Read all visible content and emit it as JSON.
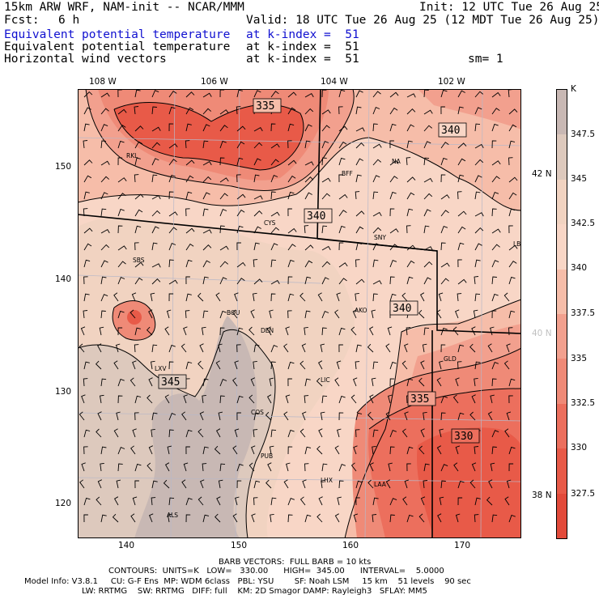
{
  "header": {
    "model_line": "15km ARW WRF, NAM-init -- NCAR/MMM",
    "init_line": "Init: 12 UTC Tue 26 Aug 25",
    "fcst_label": "Fcst:",
    "fcst_value": "6 h",
    "valid_line": "Valid: 18 UTC Tue 26 Aug 25 (12 MDT Tue 26 Aug 25)",
    "fields": [
      {
        "name": "Equivalent potential temperature",
        "level": "at k-index =  51",
        "color": "#1010d0"
      },
      {
        "name": "Equivalent potential temperature",
        "level": "at k-index =  51",
        "color": "#000000"
      },
      {
        "name": "Horizontal wind vectors",
        "level": "at k-index =  51",
        "color": "#000000"
      }
    ],
    "smoothing": "sm= 1"
  },
  "map": {
    "lon_labels_top": [
      "108 W",
      "106 W",
      "104 W",
      "102 W"
    ],
    "lat_labels_right": [
      {
        "text": "42 N",
        "color": "#000000"
      },
      {
        "text": "40 N",
        "color": "#c0c0c0"
      },
      {
        "text": "38 N",
        "color": "#000000"
      }
    ],
    "x_ticks": [
      "140",
      "150",
      "160",
      "170"
    ],
    "y_ticks": [
      "150",
      "140",
      "130",
      "120"
    ],
    "contour_labels": [
      "335",
      "340",
      "340",
      "340",
      "345",
      "335",
      "330"
    ],
    "stations": [
      "RKL",
      "BFF",
      "NA",
      "CYS",
      "SNY",
      "LBF",
      "SBS",
      "BOU",
      "DEN",
      "AKO",
      "LXV",
      "LIC",
      "GLD",
      "COS",
      "PUB",
      "LHX",
      "LAA",
      "ALS"
    ]
  },
  "colorbar": {
    "unit": "K",
    "labels": [
      "347.5",
      "345",
      "342.5",
      "340",
      "337.5",
      "335",
      "332.5",
      "330",
      "327.5"
    ],
    "colors": [
      "#c8b8b4",
      "#ddc9bd",
      "#f1d3c1",
      "#f8d6c6",
      "#f6bda9",
      "#f2a08e",
      "#ef8a77",
      "#ec6f5d",
      "#e85a48",
      "#e24a3a"
    ]
  },
  "footer": {
    "barb_line": "BARB VECTORS:  FULL BARB = 10 kts",
    "contours_line": "CONTOURS:  UNITS=K   LOW=   330.00      HIGH=  345.00      INTERVAL=    5.0000",
    "model_info_1": "Model Info: V3.8.1     CU: G-F Ens  MP: WDM 6class   PBL: YSU        SF: Noah LSM     15 km    51 levels    90 sec",
    "model_info_2": "LW: RRTMG    SW: RRTMG   DIFF: full    KM: 2D Smagor DAMP: Rayleigh3   SFLAY: MM5"
  }
}
